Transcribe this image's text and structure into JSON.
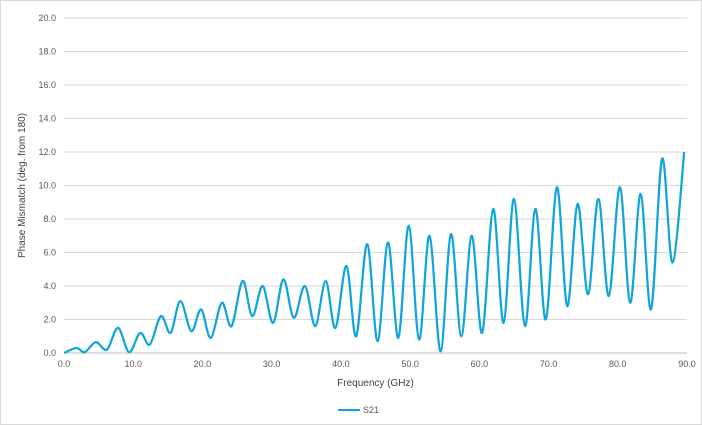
{
  "chart_data": {
    "type": "line",
    "title": "",
    "xlabel": "Frequency (GHz)",
    "ylabel": "Phase Mismatch (deg. from 180)",
    "xlim": [
      0,
      90
    ],
    "ylim": [
      0,
      20
    ],
    "x_ticks": [
      "0.0",
      "10.0",
      "20.0",
      "30.0",
      "40.0",
      "50.0",
      "60.0",
      "70.0",
      "80.0",
      "90.0"
    ],
    "y_ticks": [
      "0.0",
      "2.0",
      "4.0",
      "6.0",
      "8.0",
      "10.0",
      "12.0",
      "14.0",
      "16.0",
      "18.0",
      "20.0"
    ],
    "grid": "horizontal",
    "legend_position": "bottom-center",
    "series": [
      {
        "name": "S21",
        "color": "#12a5dc",
        "x": [
          0.0,
          1.8,
          3.0,
          4.6,
          6.2,
          7.8,
          9.4,
          11.0,
          12.4,
          14.0,
          15.4,
          16.8,
          18.4,
          19.8,
          21.2,
          22.8,
          24.2,
          25.8,
          27.2,
          28.7,
          30.2,
          31.7,
          33.2,
          34.8,
          36.3,
          37.8,
          39.2,
          40.8,
          42.2,
          43.8,
          45.3,
          46.8,
          48.3,
          49.8,
          51.3,
          52.8,
          54.4,
          55.9,
          57.4,
          58.9,
          60.4,
          62.0,
          63.5,
          65.0,
          66.6,
          68.1,
          69.6,
          71.2,
          72.7,
          74.2,
          75.7,
          77.2,
          78.7,
          80.3,
          81.8,
          83.3,
          84.8,
          86.4,
          87.9,
          89.6
        ],
        "y": [
          0.0,
          0.3,
          0.05,
          0.65,
          0.2,
          1.5,
          0.05,
          1.2,
          0.5,
          2.2,
          1.2,
          3.1,
          1.3,
          2.6,
          0.9,
          3.0,
          1.6,
          4.3,
          2.2,
          4.0,
          1.8,
          4.4,
          2.1,
          4.0,
          1.6,
          4.3,
          1.5,
          5.2,
          1.0,
          6.5,
          0.7,
          6.6,
          0.9,
          7.6,
          0.8,
          7.0,
          0.1,
          7.1,
          1.0,
          7.0,
          1.2,
          8.6,
          1.8,
          9.2,
          1.6,
          8.6,
          2.0,
          9.9,
          2.8,
          8.9,
          3.5,
          9.2,
          3.4,
          9.9,
          3.0,
          9.5,
          2.6,
          11.6,
          5.4,
          12.0
        ]
      }
    ]
  }
}
